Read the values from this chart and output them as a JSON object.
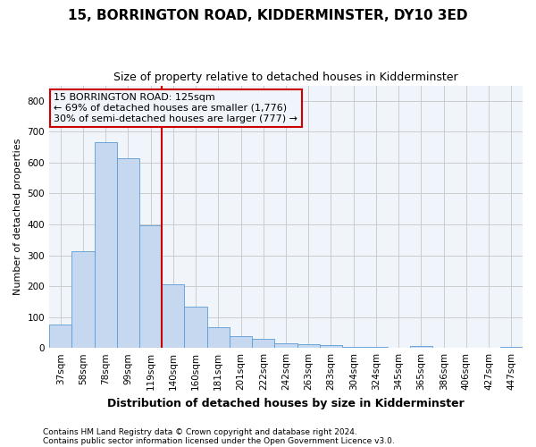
{
  "title": "15, BORRINGTON ROAD, KIDDERMINSTER, DY10 3ED",
  "subtitle": "Size of property relative to detached houses in Kidderminster",
  "xlabel": "Distribution of detached houses by size in Kidderminster",
  "ylabel": "Number of detached properties",
  "footnote1": "Contains HM Land Registry data © Crown copyright and database right 2024.",
  "footnote2": "Contains public sector information licensed under the Open Government Licence v3.0.",
  "annotation_line1": "15 BORRINGTON ROAD: 125sqm",
  "annotation_line2": "← 69% of detached houses are smaller (1,776)",
  "annotation_line3": "30% of semi-detached houses are larger (777) →",
  "categories": [
    "37sqm",
    "58sqm",
    "78sqm",
    "99sqm",
    "119sqm",
    "140sqm",
    "160sqm",
    "181sqm",
    "201sqm",
    "222sqm",
    "242sqm",
    "263sqm",
    "283sqm",
    "304sqm",
    "324sqm",
    "345sqm",
    "365sqm",
    "386sqm",
    "406sqm",
    "427sqm",
    "447sqm"
  ],
  "values": [
    75,
    312,
    665,
    615,
    398,
    205,
    133,
    68,
    38,
    30,
    15,
    12,
    8,
    2,
    4,
    1,
    5,
    0,
    0,
    0,
    4
  ],
  "bar_color": "#c5d8f0",
  "bar_edge_color": "#5b9bd5",
  "vline_color": "#cc0000",
  "vline_x_idx": 4,
  "ylim": [
    0,
    850
  ],
  "yticks": [
    0,
    100,
    200,
    300,
    400,
    500,
    600,
    700,
    800
  ],
  "annotation_box_color": "#cc0000",
  "grid_color": "#cccccc",
  "bg_color": "#ffffff",
  "plot_bg_color": "#f0f4fb",
  "title_fontsize": 11,
  "subtitle_fontsize": 9,
  "ylabel_fontsize": 8,
  "xlabel_fontsize": 9,
  "tick_fontsize": 7.5,
  "footnote_fontsize": 6.5,
  "ann_fontsize": 8
}
